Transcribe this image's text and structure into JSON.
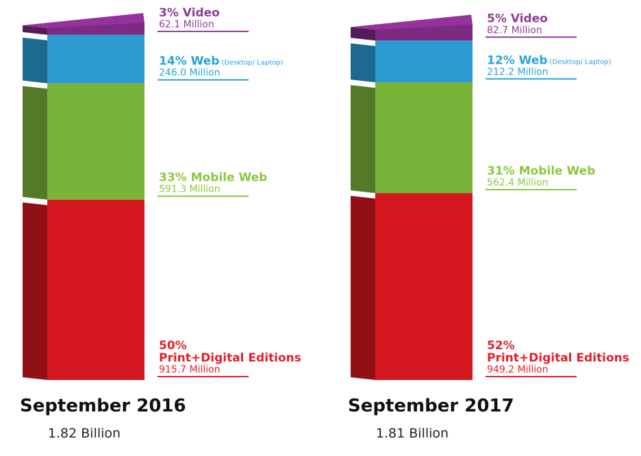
{
  "chart_data": [
    {
      "type": "bar",
      "title": "September 2016",
      "subtitle": "1.82 Billion",
      "series": [
        {
          "name": "Print+Digital Editions",
          "share": "50%",
          "color": "#d4171f",
          "label_color": "#e3202a",
          "values": [
            915.7
          ],
          "value_labels": [
            "915.7 Million"
          ]
        },
        {
          "name": "Mobile Web",
          "share": "33%",
          "color": "#7ab33a",
          "label_color": "#8dc63f",
          "values": [
            591.3
          ],
          "value_labels": [
            "591.3 Million"
          ]
        },
        {
          "name": "Web",
          "note": "(Desktop/ Laptop)",
          "share": "14%",
          "color": "#2c9bd2",
          "label_color": "#29a3dc",
          "values": [
            246.0
          ],
          "value_labels": [
            "246.0 Million"
          ]
        },
        {
          "name": "Video",
          "share": "3%",
          "color": "#7c2a84",
          "label_color": "#8e3c96",
          "values": [
            62.1
          ],
          "value_labels": [
            "62.1 Million"
          ]
        }
      ]
    },
    {
      "type": "bar",
      "title": "September 2017",
      "subtitle": "1.81 Billion",
      "series": [
        {
          "name": "Print+Digital Editions",
          "share": "52%",
          "color": "#d4171f",
          "label_color": "#e3202a",
          "values": [
            949.2
          ],
          "value_labels": [
            "949.2 Million"
          ]
        },
        {
          "name": "Mobile Web",
          "share": "31%",
          "color": "#7ab33a",
          "label_color": "#8dc63f",
          "values": [
            562.4
          ],
          "value_labels": [
            "562.4 Million"
          ]
        },
        {
          "name": "Web",
          "note": "(Desktop/ Laptop)",
          "share": "12%",
          "color": "#2c9bd2",
          "label_color": "#29a3dc",
          "values": [
            212.2
          ],
          "value_labels": [
            "212.2 Million"
          ]
        },
        {
          "name": "Video",
          "share": "5%",
          "color": "#7c2a84",
          "label_color": "#8e3c96",
          "values": [
            82.7
          ],
          "value_labels": [
            "82.7 Million"
          ]
        }
      ]
    }
  ]
}
